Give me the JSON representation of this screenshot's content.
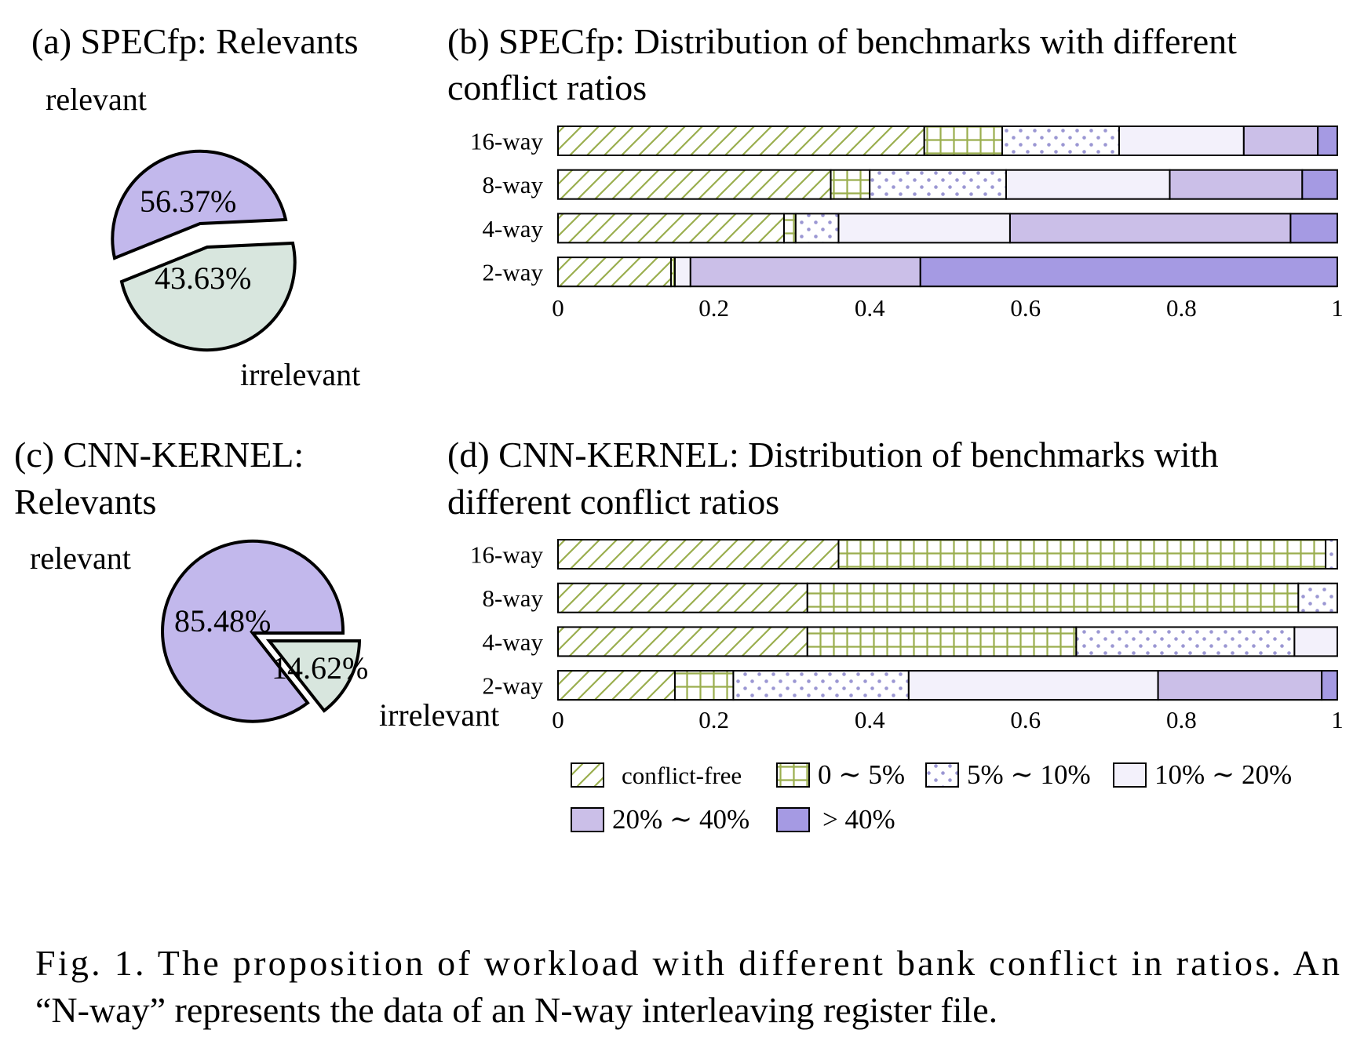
{
  "colors": {
    "hatch_green": "#9aae4e",
    "dots": "#9b97d3",
    "light": "#f3f1fb",
    "mid": "#cbbfe8",
    "dark": "#a59ae3",
    "pie_relevant": "#c2b8ec",
    "pie_irrelevant": "#d8e6de"
  },
  "chart_data": [
    {
      "type": "pie",
      "title": "(a) SPECfp: Relevants",
      "labels": [
        "relevant",
        "irrelevant"
      ],
      "values": [
        56.37,
        43.63
      ],
      "value_labels": [
        "56.37%",
        "43.63%"
      ],
      "colors": [
        "#c2b8ec",
        "#d8e6de"
      ],
      "exploded": true
    },
    {
      "type": "bar",
      "orientation": "horizontal",
      "stacked": true,
      "title_lines": [
        "(b) SPECfp: Distribution of benchmarks with different",
        "conflict ratios"
      ],
      "categories": [
        "16-way",
        "8-way",
        "4-way",
        "2-way"
      ],
      "xlim": [
        0,
        1
      ],
      "xticks": [
        "0",
        "0.2",
        "0.4",
        "0.6",
        "0.8",
        "1"
      ],
      "series": [
        {
          "name": "conflict-free",
          "values": [
            0.47,
            0.35,
            0.29,
            0.145
          ]
        },
        {
          "name": "0 ∼ 5%",
          "values": [
            0.1,
            0.05,
            0.015,
            0.005
          ]
        },
        {
          "name": "5% ∼ 10%",
          "values": [
            0.15,
            0.175,
            0.055,
            0.0
          ]
        },
        {
          "name": "10% ∼ 20%",
          "values": [
            0.16,
            0.21,
            0.22,
            0.02
          ]
        },
        {
          "name": "20% ∼ 40%",
          "values": [
            0.095,
            0.17,
            0.36,
            0.295
          ]
        },
        {
          "name": "> 40%",
          "values": [
            0.025,
            0.045,
            0.06,
            0.535
          ]
        }
      ]
    },
    {
      "type": "pie",
      "title_lines": [
        "(c) CNN-KERNEL:",
        "Relevants"
      ],
      "labels": [
        "relevant",
        "irrelevant"
      ],
      "values": [
        85.48,
        14.62
      ],
      "value_labels": [
        "85.48%",
        "14.62%"
      ],
      "colors": [
        "#c2b8ec",
        "#d8e6de"
      ],
      "exploded": true
    },
    {
      "type": "bar",
      "orientation": "horizontal",
      "stacked": true,
      "title_lines": [
        "(d) CNN-KERNEL: Distribution of benchmarks with",
        "different conflict ratios"
      ],
      "categories": [
        "16-way",
        "8-way",
        "4-way",
        "2-way"
      ],
      "xlim": [
        0,
        1
      ],
      "xticks": [
        "0",
        "0.2",
        "0.4",
        "0.6",
        "0.8",
        "1"
      ],
      "series": [
        {
          "name": "conflict-free",
          "values": [
            0.36,
            0.32,
            0.32,
            0.15
          ]
        },
        {
          "name": "0 ∼ 5%",
          "values": [
            0.625,
            0.63,
            0.345,
            0.075
          ]
        },
        {
          "name": "5% ∼ 10%",
          "values": [
            0.015,
            0.05,
            0.28,
            0.225
          ]
        },
        {
          "name": "10% ∼ 20%",
          "values": [
            0.0,
            0.0,
            0.055,
            0.32
          ]
        },
        {
          "name": "20% ∼ 40%",
          "values": [
            0.0,
            0.0,
            0.0,
            0.21
          ]
        },
        {
          "name": "> 40%",
          "values": [
            0.0,
            0.0,
            0.0,
            0.02
          ]
        }
      ]
    }
  ],
  "legend": [
    "conflict-free",
    "0 ∼ 5%",
    "5% ∼ 10%",
    "10% ∼ 20%",
    "20% ∼ 40%",
    "> 40%"
  ],
  "caption": [
    "Fig. 1. The proposition of workload with different bank conflict in ratios. An",
    "“N-way” represents the data of an N-way interleaving register file."
  ]
}
